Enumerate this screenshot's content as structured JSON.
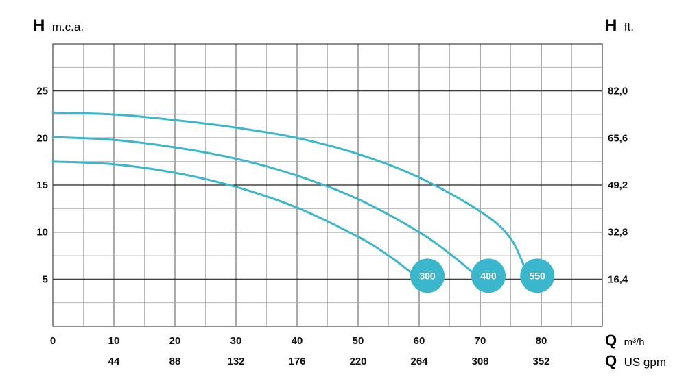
{
  "chart_data": {
    "type": "line",
    "left_axis": {
      "letter": "H",
      "unit": "m.c.a.",
      "ticks": [
        "5",
        "10",
        "15",
        "20",
        "25"
      ],
      "ylim": [
        0,
        30
      ]
    },
    "right_axis": {
      "letter": "H",
      "unit": "ft.",
      "ticks": [
        "16,4",
        "32,8",
        "49,2",
        "65,6",
        "82,0"
      ]
    },
    "x_primary": {
      "letter": "Q",
      "unit": "m³/h",
      "ticks": [
        "0",
        "10",
        "20",
        "30",
        "40",
        "50",
        "60",
        "70",
        "80"
      ],
      "xlim": [
        0,
        90
      ]
    },
    "x_secondary": {
      "letter": "Q",
      "unit": "US gpm",
      "ticks": [
        "44",
        "88",
        "132",
        "176",
        "220",
        "264",
        "308",
        "352"
      ]
    },
    "grid": true,
    "series_color": "#3ab7cc",
    "series": [
      {
        "name": "300",
        "x": [
          0,
          10,
          20,
          30,
          40,
          50,
          55,
          58.5,
          60
        ],
        "y": [
          17.5,
          17.2,
          16.3,
          14.8,
          12.6,
          9.5,
          7.5,
          5.8,
          5.0
        ]
      },
      {
        "name": "400",
        "x": [
          0,
          10,
          20,
          30,
          40,
          50,
          60,
          66,
          70
        ],
        "y": [
          20.1,
          19.8,
          19.0,
          17.8,
          16.0,
          13.5,
          10.0,
          7.2,
          5.0
        ]
      },
      {
        "name": "550",
        "x": [
          0,
          10,
          20,
          30,
          40,
          50,
          60,
          70,
          75,
          78
        ],
        "y": [
          22.7,
          22.5,
          21.9,
          21.1,
          20.0,
          18.3,
          15.8,
          12.2,
          9.3,
          5.0
        ]
      }
    ]
  }
}
